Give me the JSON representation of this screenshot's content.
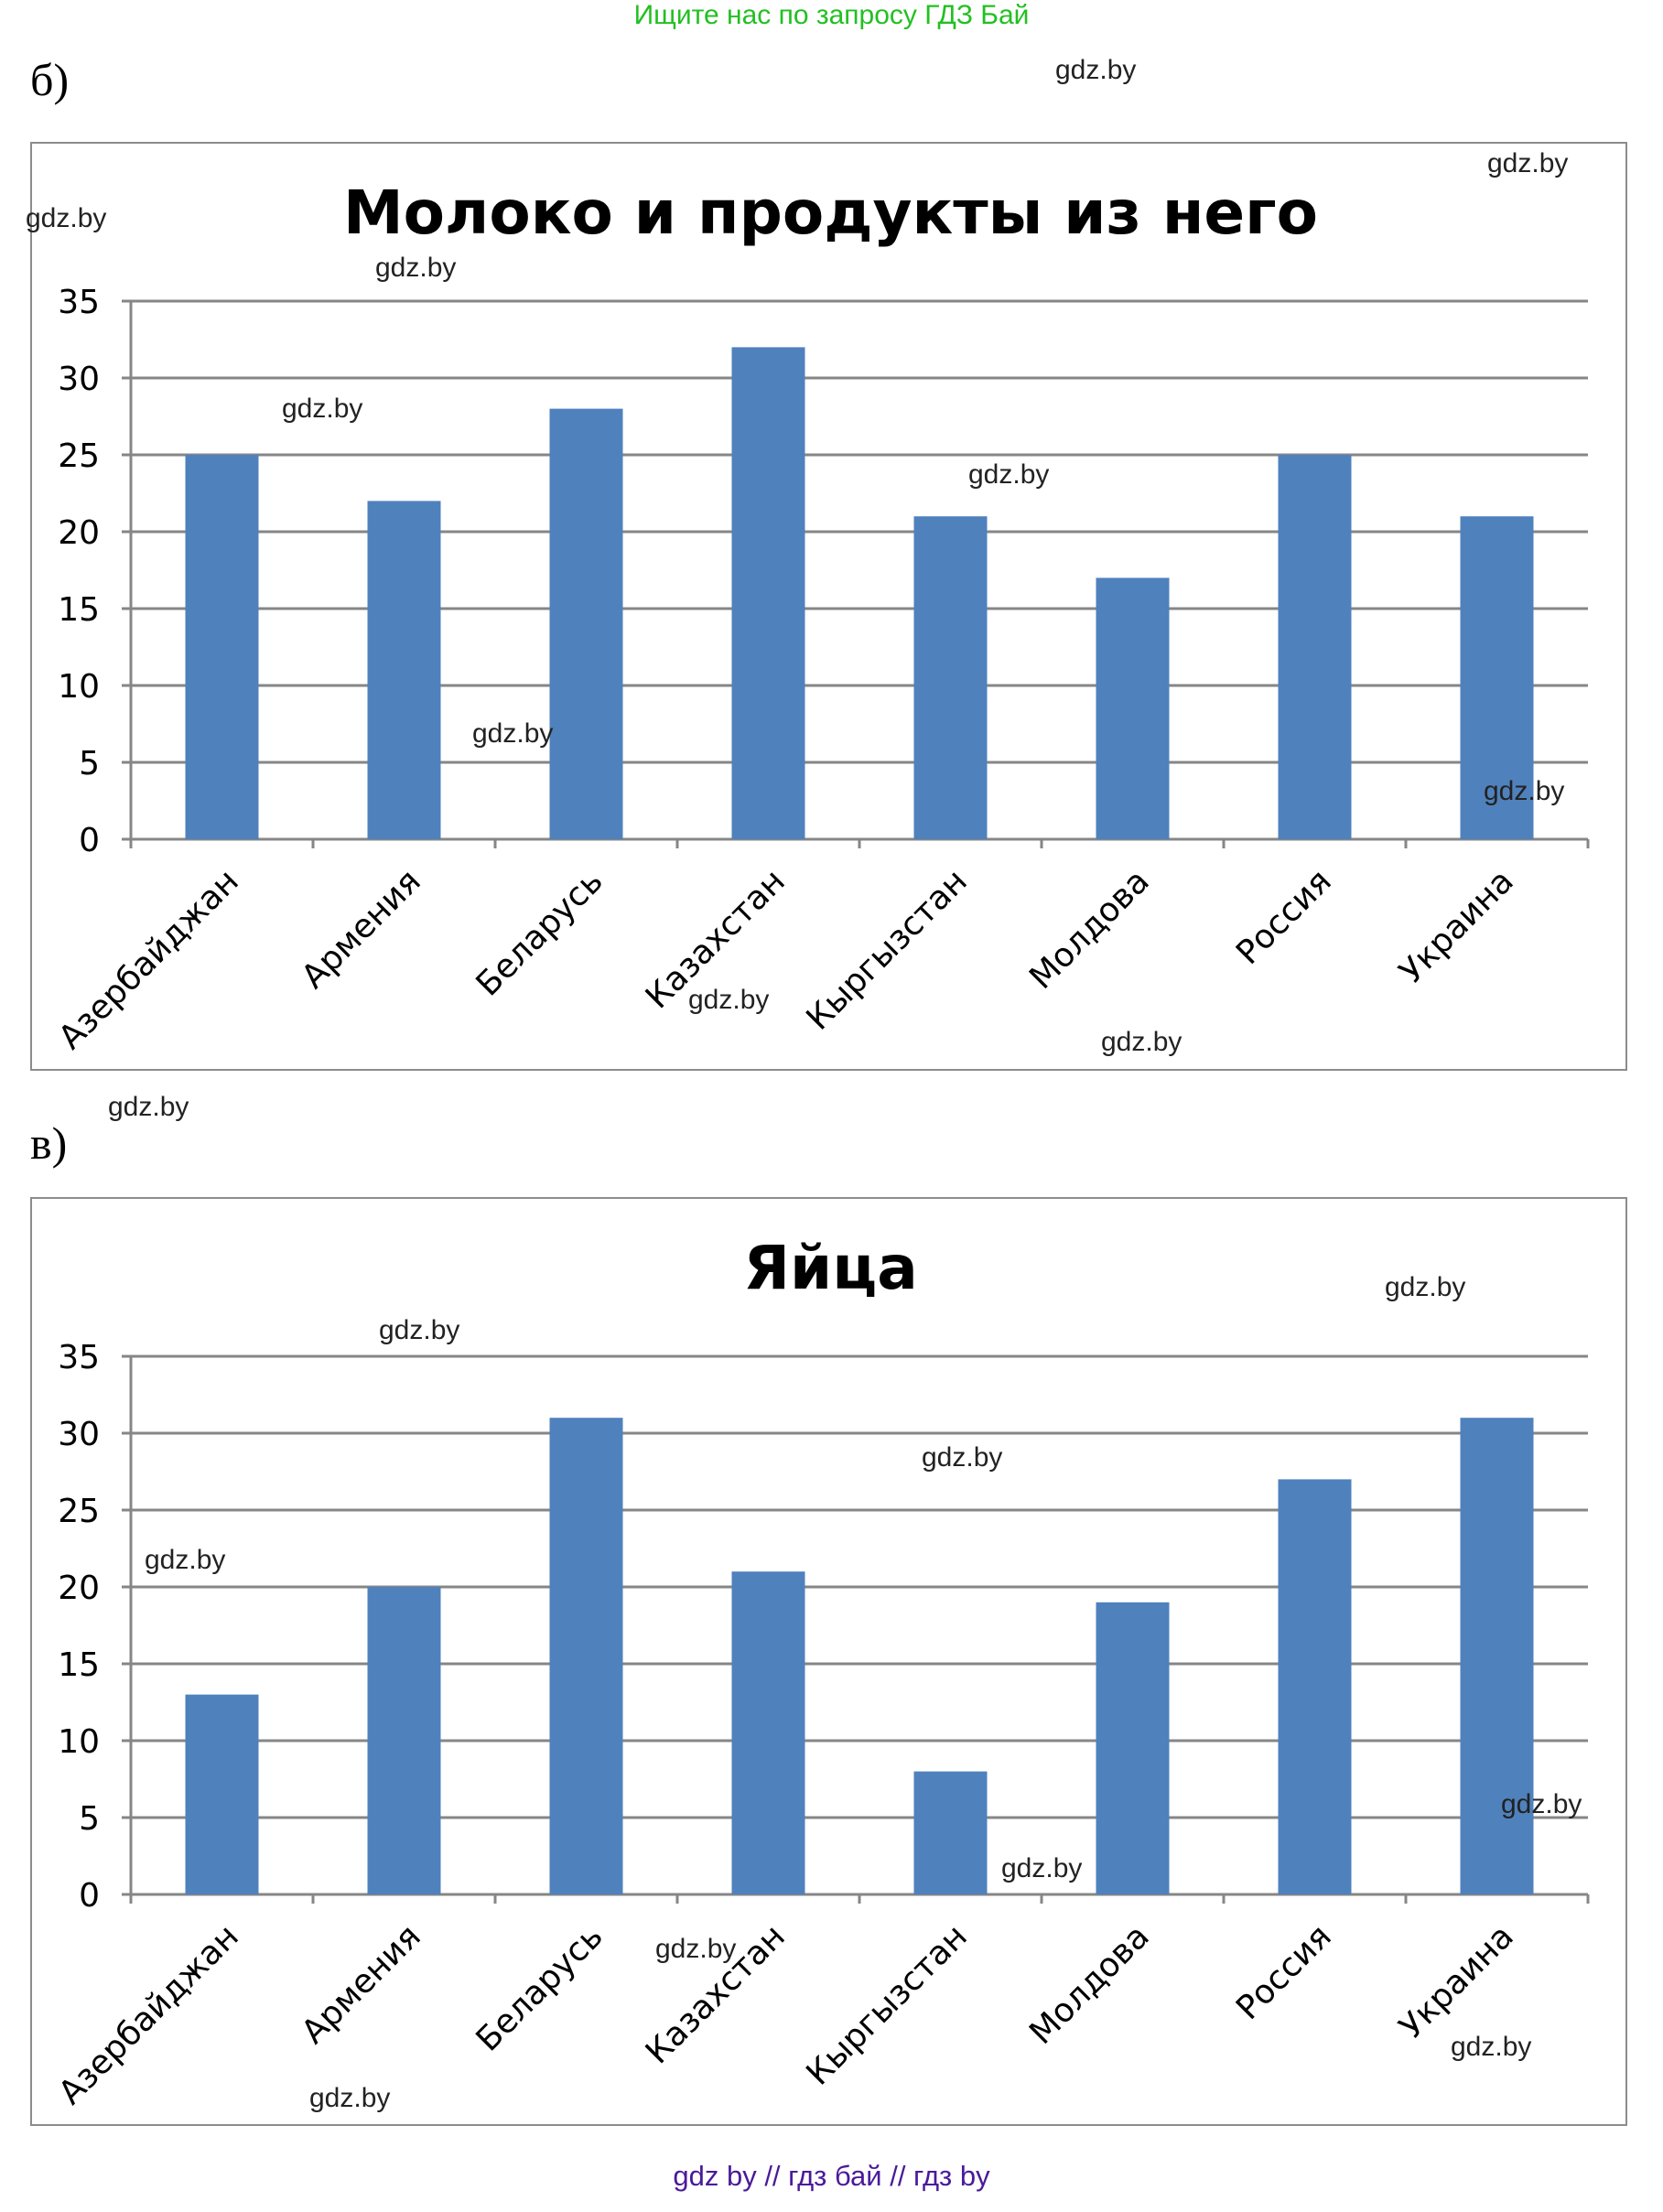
{
  "banner": "Ищите нас по запросу ГДЗ Бай",
  "footer": "gdz by  //  гдз бай  //  гдз by",
  "section_labels": {
    "b": "б)",
    "v": "в)"
  },
  "watermark": "gdz.by",
  "colors": {
    "bar": "#4f81bd",
    "grid": "#868686",
    "banner": "#22c022",
    "footer": "#4a1a9a"
  },
  "chart_data": [
    {
      "type": "bar",
      "title": "Молоко и продукты из него",
      "categories": [
        "Азербайджан",
        "Армения",
        "Беларусь",
        "Казахстан",
        "Кыргызстан",
        "Молдова",
        "Россия",
        "Украина"
      ],
      "values": [
        25,
        22,
        28,
        32,
        21,
        17,
        25,
        21
      ],
      "ylim": [
        0,
        35
      ],
      "yticks": [
        0,
        5,
        10,
        15,
        20,
        25,
        30,
        35
      ],
      "xlabel": "",
      "ylabel": "",
      "grid": true,
      "legend": "none"
    },
    {
      "type": "bar",
      "title": "Яйца",
      "categories": [
        "Азербайджан",
        "Армения",
        "Беларусь",
        "Казахстан",
        "Кыргызстан",
        "Молдова",
        "Россия",
        "Украина"
      ],
      "values": [
        13,
        20,
        31,
        21,
        8,
        19,
        27,
        31
      ],
      "ylim": [
        0,
        35
      ],
      "yticks": [
        0,
        5,
        10,
        15,
        20,
        25,
        30,
        35
      ],
      "xlabel": "",
      "ylabel": "",
      "grid": true,
      "legend": "none"
    }
  ]
}
